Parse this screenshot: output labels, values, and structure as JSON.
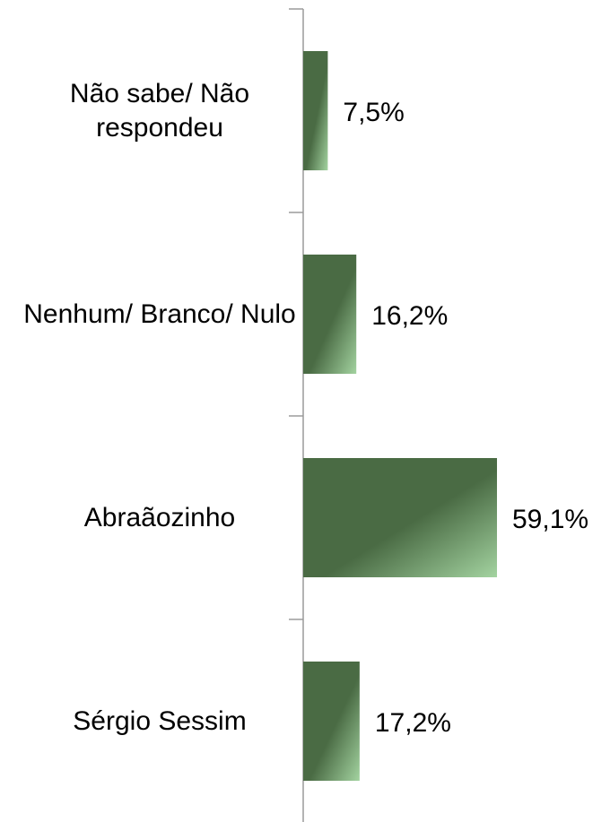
{
  "chart_data": {
    "type": "barh",
    "categories": [
      "Não sabe/ Não respondeu",
      "Nenhum/ Branco/ Nulo",
      "Abraãozinho",
      "Sérgio Sessim"
    ],
    "values": [
      7.5,
      16.2,
      59.1,
      17.2
    ],
    "value_labels": [
      "7,5%",
      "16,2%",
      "59,1%",
      "17,2%"
    ],
    "color": "#4a6b44"
  }
}
